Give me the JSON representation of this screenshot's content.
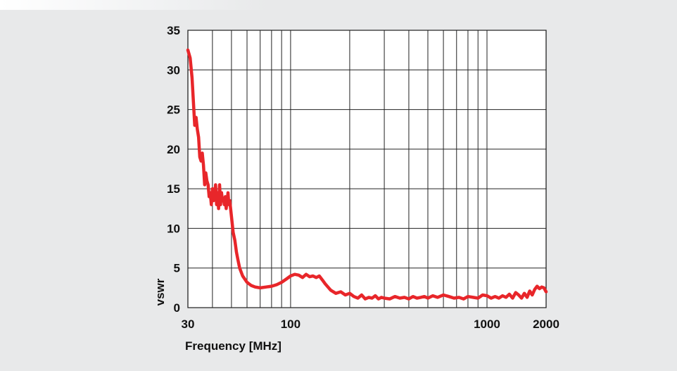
{
  "chart_data": {
    "type": "line",
    "title": "",
    "xlabel": "Frequency [MHz]",
    "ylabel": "vswr",
    "xscale": "log",
    "xlim": [
      30,
      2000
    ],
    "ylim": [
      0,
      35
    ],
    "grid": true,
    "legend": "none",
    "x_tick_labels": [
      "30",
      "100",
      "1000",
      "2000"
    ],
    "x_tick_values": [
      30,
      100,
      1000,
      2000
    ],
    "y_tick_labels": [
      "0",
      "5",
      "10",
      "15",
      "20",
      "25",
      "30",
      "35"
    ],
    "y_tick_values": [
      0,
      5,
      10,
      15,
      20,
      25,
      30,
      35
    ],
    "line_color": "#e8262a",
    "background_color": "#e8e9ea",
    "plot_background": "#ffffff",
    "series": [
      {
        "x": [
          30,
          30.8,
          31.5,
          32,
          32.5,
          33,
          33.5,
          34,
          34.5,
          35,
          35.5,
          36,
          36.5,
          37,
          37.5,
          38,
          38.5,
          39,
          39.5,
          40,
          40.5,
          41,
          41.5,
          42,
          42.5,
          43,
          43.5,
          44,
          44.5,
          45,
          45.5,
          46,
          46.5,
          47,
          47.5,
          48,
          48.5,
          49,
          49.5,
          50,
          50.5,
          51,
          52,
          53,
          54,
          55,
          57,
          60,
          63,
          66,
          70,
          75,
          80,
          85,
          90,
          95,
          100,
          105,
          110,
          115,
          120,
          125,
          130,
          135,
          140,
          145,
          150,
          160,
          170,
          180,
          190,
          200,
          210,
          220,
          230,
          240,
          250,
          260,
          270,
          280,
          290,
          300,
          320,
          340,
          360,
          380,
          400,
          420,
          440,
          460,
          480,
          500,
          530,
          560,
          600,
          640,
          680,
          720,
          760,
          800,
          850,
          900,
          950,
          1000,
          1050,
          1100,
          1150,
          1200,
          1250,
          1300,
          1350,
          1400,
          1450,
          1500,
          1550,
          1600,
          1650,
          1700,
          1750,
          1800,
          1850,
          1900,
          1950,
          2000
        ],
        "y": [
          32.5,
          31.5,
          29,
          26,
          23,
          24,
          22.5,
          21.5,
          19,
          18.5,
          19.5,
          18,
          15.5,
          17,
          16,
          15.5,
          14,
          14.5,
          13,
          15,
          13.5,
          14,
          15.5,
          13,
          14.5,
          12.5,
          15.5,
          13,
          14.5,
          13.5,
          13.8,
          13,
          14,
          12.5,
          13.5,
          14.5,
          13,
          13.5,
          12.5,
          11.5,
          10.5,
          9.5,
          8.5,
          7,
          6,
          5,
          4,
          3.2,
          2.8,
          2.6,
          2.5,
          2.6,
          2.7,
          2.9,
          3.2,
          3.6,
          4,
          4.2,
          4.1,
          3.8,
          4.2,
          3.9,
          4,
          3.8,
          4,
          3.5,
          3,
          2.2,
          1.8,
          2,
          1.6,
          1.8,
          1.4,
          1.2,
          1.6,
          1.1,
          1.3,
          1.2,
          1.5,
          1.1,
          1.3,
          1.2,
          1.1,
          1.4,
          1.2,
          1.3,
          1.1,
          1.4,
          1.2,
          1.3,
          1.4,
          1.2,
          1.5,
          1.3,
          1.6,
          1.4,
          1.2,
          1.3,
          1.1,
          1.4,
          1.3,
          1.2,
          1.6,
          1.5,
          1.2,
          1.4,
          1.2,
          1.5,
          1.3,
          1.7,
          1.2,
          1.9,
          1.6,
          1.2,
          1.8,
          1.3,
          2.1,
          1.6,
          2.3,
          2.7,
          2.4,
          2.6,
          2.5,
          2
        ]
      }
    ]
  }
}
